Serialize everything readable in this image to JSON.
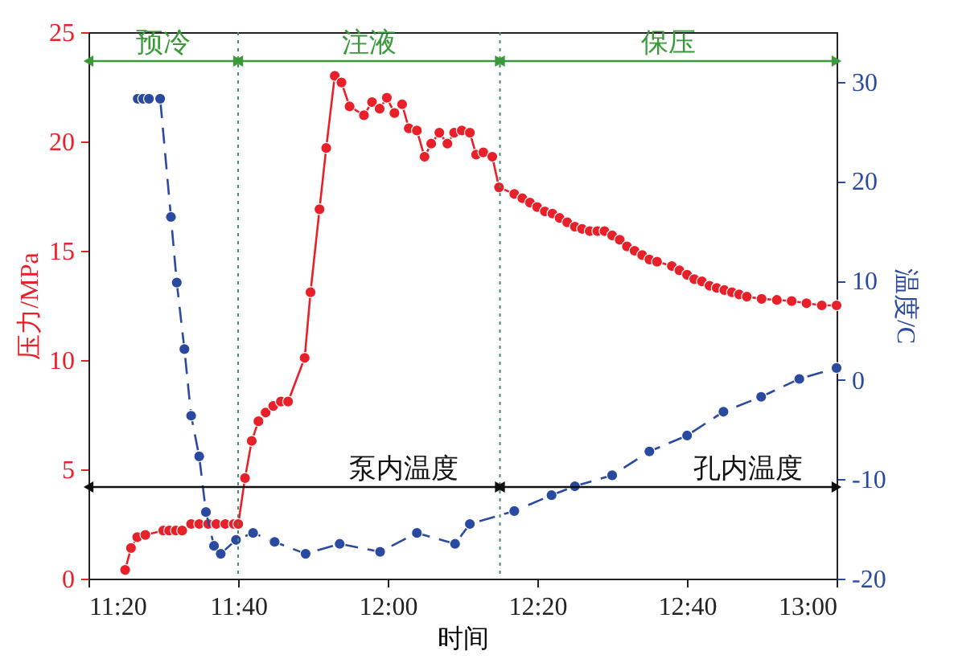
{
  "chart_data": {
    "type": "line",
    "xlabel": "时间",
    "ylabel": "压力/MPa",
    "y2label": "温度/C",
    "xlim": [
      11.3333,
      13
    ],
    "xticks": [
      {
        "value": 11.3333,
        "label": "11:20"
      },
      {
        "value": 11.6667,
        "label": "11:40"
      },
      {
        "value": 12,
        "label": "12:00"
      },
      {
        "value": 12.3333,
        "label": "12:20"
      },
      {
        "value": 12.6667,
        "label": "12:40"
      },
      {
        "value": 13,
        "label": "13:00"
      }
    ],
    "ylim": [
      0,
      25
    ],
    "yticks": [
      0,
      5,
      10,
      15,
      20,
      25
    ],
    "y2lim": [
      -20,
      35
    ],
    "y2ticks": [
      -20,
      -10,
      0,
      10,
      20,
      30
    ],
    "grid": false,
    "marker": "circle",
    "series": [
      {
        "color": "#e8202a",
        "line_style": "solid",
        "x": [
          11.415,
          11.428,
          11.442,
          11.46,
          11.5,
          11.513,
          11.528,
          11.542,
          11.562,
          11.58,
          11.6,
          11.618,
          11.638,
          11.657,
          11.667,
          11.682,
          11.697,
          11.712,
          11.728,
          11.745,
          11.762,
          11.778,
          11.815,
          11.828,
          11.848,
          11.863,
          11.882,
          11.897,
          11.915,
          11.947,
          11.965,
          11.982,
          11.998,
          12.015,
          12.032,
          12.047,
          12.065,
          12.082,
          12.097,
          12.115,
          12.133,
          12.148,
          12.165,
          12.183,
          12.197,
          12.213,
          12.233,
          12.248,
          12.282,
          12.3,
          12.317,
          12.333,
          12.35,
          12.367,
          12.383,
          12.4,
          12.417,
          12.433,
          12.45,
          12.467,
          12.483,
          12.5,
          12.517,
          12.533,
          12.55,
          12.567,
          12.583,
          12.6,
          12.633,
          12.65,
          12.667,
          12.683,
          12.7,
          12.717,
          12.733,
          12.75,
          12.767,
          12.783,
          12.8,
          12.833,
          12.867,
          12.9,
          12.933,
          12.967,
          13
        ],
        "values": [
          0.4,
          1.4,
          1.9,
          2.0,
          2.2,
          2.2,
          2.2,
          2.2,
          2.5,
          2.5,
          2.5,
          2.5,
          2.5,
          2.5,
          2.5,
          4.6,
          6.3,
          7.2,
          7.6,
          7.9,
          8.1,
          8.1,
          10.1,
          13.1,
          16.9,
          19.7,
          23.0,
          22.7,
          21.6,
          21.2,
          21.8,
          21.5,
          22.0,
          21.3,
          21.7,
          20.6,
          20.5,
          19.3,
          19.9,
          20.4,
          19.9,
          20.4,
          20.5,
          20.4,
          19.4,
          19.5,
          19.3,
          17.9,
          17.6,
          17.4,
          17.2,
          17.0,
          16.8,
          16.7,
          16.5,
          16.3,
          16.1,
          16.0,
          15.9,
          15.9,
          15.9,
          15.7,
          15.5,
          15.2,
          15.0,
          14.8,
          14.6,
          14.5,
          14.3,
          14.1,
          13.9,
          13.7,
          13.6,
          13.4,
          13.3,
          13.2,
          13.1,
          13.0,
          12.9,
          12.8,
          12.75,
          12.7,
          12.6,
          12.5,
          12.5
        ]
      },
      {
        "color": "#2a4aa0",
        "line_style": "dashed",
        "axis": "y2",
        "x": [
          11.443,
          11.455,
          11.468,
          11.493,
          11.517,
          11.53,
          11.547,
          11.562,
          11.58,
          11.595,
          11.613,
          11.628,
          11.662,
          11.7,
          11.748,
          11.817,
          11.893,
          11.983,
          12.065,
          12.15,
          12.183,
          12.282,
          12.365,
          12.417,
          12.5,
          12.583,
          12.667,
          12.748,
          12.832,
          12.917,
          13
        ],
        "values": [
          28.3,
          28.3,
          28.3,
          28.3,
          16.4,
          9.8,
          3.1,
          -3.6,
          -7.7,
          -13.3,
          -16.7,
          -17.5,
          -16.1,
          -15.4,
          -16.3,
          -17.5,
          -16.5,
          -17.3,
          -15.4,
          -16.5,
          -14.5,
          -13.2,
          -11.6,
          -10.7,
          -9.6,
          -7.2,
          -5.6,
          -3.2,
          -1.7,
          0.1,
          1.2
        ]
      }
    ],
    "ref_lines": [
      {
        "axis": "x",
        "value": 11.6667,
        "line_style": "dotted",
        "color": "#4a8a6a"
      },
      {
        "axis": "x",
        "value": 12.25,
        "line_style": "dotted",
        "color": "#4a8a6a"
      }
    ],
    "annotations": [
      "预冷",
      "注液",
      "保压",
      "泵内温度",
      "孔内温度"
    ]
  }
}
